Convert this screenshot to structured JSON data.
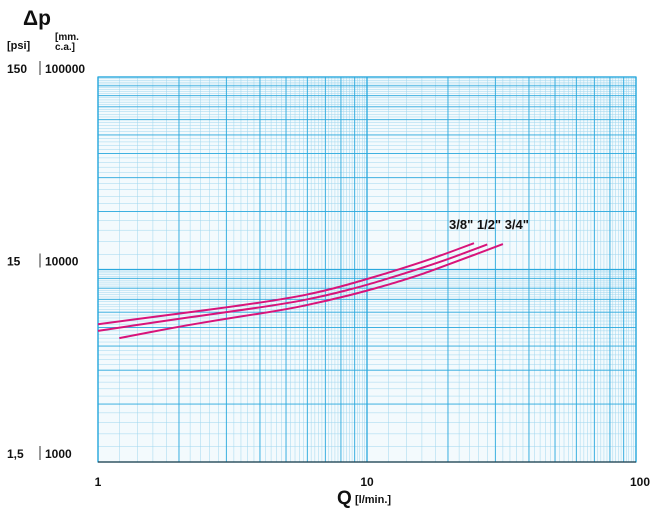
{
  "colors": {
    "grid": "#29a8dd",
    "grid_fine": "#9fd6ee",
    "curve": "#d8147a",
    "text": "#111111"
  },
  "chart_data": {
    "type": "line",
    "x_scale": "log",
    "y_scale": "log",
    "xlim": [
      1,
      100
    ],
    "ylim_mm": [
      1000,
      100000
    ],
    "x_ticks": [
      "1",
      "10",
      "100"
    ],
    "y_ticks_psi": [
      "1,5",
      "15",
      "150"
    ],
    "y_ticks_mm": [
      "1000",
      "10000",
      "100000"
    ],
    "xlabel": "Q",
    "xunit": "[l/min.]",
    "ylabel": "Δp",
    "yunit_psi": "[psi]",
    "yunit_mm": "[mm.\nc.a.]",
    "grid": true,
    "series": [
      {
        "name": "3/8\"",
        "x": [
          1,
          2,
          3,
          5,
          7,
          10,
          15,
          20,
          25
        ],
        "y": [
          5200,
          5900,
          6350,
          7050,
          7750,
          8900,
          10600,
          12200,
          13700
        ]
      },
      {
        "name": "1/2\"",
        "x": [
          1,
          2,
          3,
          5,
          7,
          10,
          15,
          20,
          28
        ],
        "y": [
          4800,
          5550,
          6000,
          6650,
          7300,
          8300,
          9900,
          11300,
          13500
        ]
      },
      {
        "name": "3/4\"",
        "x": [
          1.2,
          2,
          3,
          5,
          7,
          10,
          15,
          20,
          32
        ],
        "y": [
          4400,
          5050,
          5550,
          6200,
          6850,
          7750,
          9150,
          10600,
          13550
        ]
      }
    ],
    "legend_text": "3/8\"  1/2\"  3/4\""
  }
}
